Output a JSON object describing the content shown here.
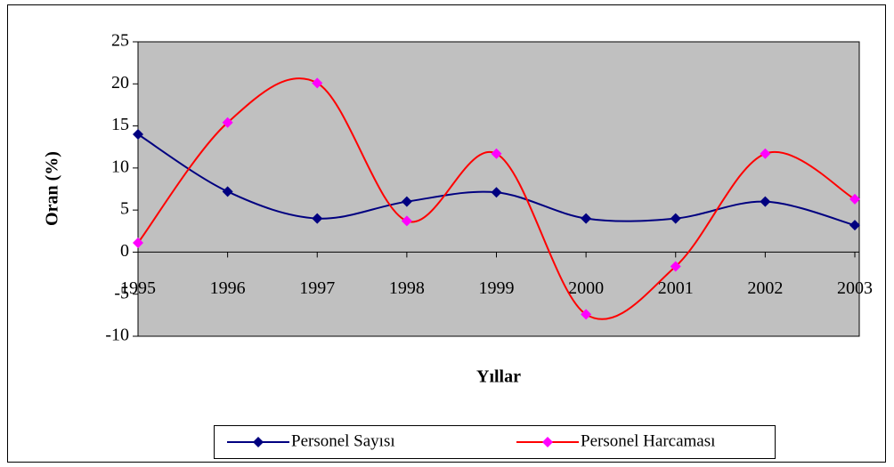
{
  "chart_data": {
    "type": "line",
    "x_label": "Yıllar",
    "y_label": "Oran (%)",
    "categories": [
      "1995",
      "1996",
      "1997",
      "1998",
      "1999",
      "2000",
      "2001",
      "2002",
      "2003"
    ],
    "series": [
      {
        "name": "Personel Sayısı",
        "color": "#000080",
        "line_color": "#000080",
        "values": [
          14,
          7.2,
          4,
          6,
          7.1,
          4,
          4,
          6,
          3.2
        ]
      },
      {
        "name": "Personel Harcaması",
        "color": "#ff00ff",
        "line_color": "#ff0000",
        "values": [
          1.1,
          15.4,
          20.1,
          3.7,
          11.7,
          -7.4,
          -1.7,
          11.7,
          6.3
        ]
      }
    ],
    "ylim": [
      -10,
      25
    ],
    "yticks": [
      -10,
      -5,
      0,
      5,
      10,
      15,
      20,
      25
    ],
    "smooth": true,
    "plot_background": "#c0c0c0",
    "legend": "bottom"
  }
}
